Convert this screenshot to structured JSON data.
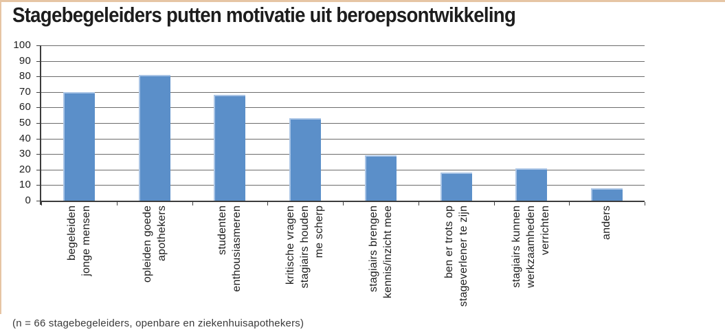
{
  "chart_data": {
    "type": "bar",
    "title": "Stagebegeleiders putten motivatie uit beroepsontwikkeling",
    "footnote": "(n = 66 stagebegeleiders, openbare en ziekenhuisapothekers)",
    "categories": [
      "begeleiden\njonge mensen",
      "opleiden goede\napothekers",
      "studenten\nenthousiasmeren",
      "kritische vragen\nstagiairs houden\nme scherp",
      "stagiairs brengen\nkennis/inzicht mee",
      "ben er trots op\nstageverlener te zijn",
      "stagiairs kunnen\nwerkzaamheden\nverrichten",
      "anders"
    ],
    "values": [
      70,
      81,
      68,
      53,
      29,
      18,
      21,
      8
    ],
    "xlabel": "",
    "ylabel": "",
    "ylim": [
      0,
      100
    ],
    "yticks": [
      0,
      10,
      20,
      30,
      40,
      50,
      60,
      70,
      80,
      90,
      100
    ],
    "grid": true,
    "legend_position": "none",
    "bar_color": "#5B8FC9",
    "colors": {
      "bar_highlight": "#AAC5E6",
      "page_border": "#E6C5A4",
      "gridline": "#6B6B6B",
      "axis": "#3C3C3C",
      "text": "#1C1C1C"
    }
  }
}
